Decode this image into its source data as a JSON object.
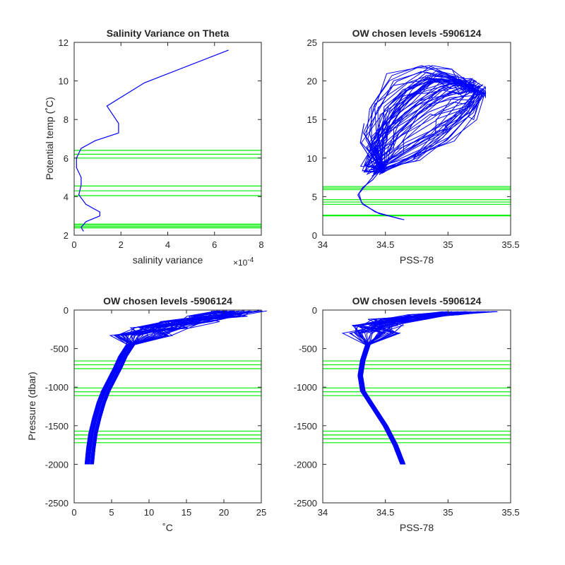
{
  "figure": {
    "colors": {
      "profile": "#0000ff",
      "level": "#00ee00",
      "axis": "#262626"
    }
  },
  "chart_data": [
    {
      "id": "p1",
      "type": "line",
      "title": "Salinity Variance on Theta",
      "xlabel": "salinity variance",
      "ylabel": "Potential temp (˚C)",
      "x_exponent": "×10",
      "x_exponent_power": "-4",
      "xlim": [
        0,
        8
      ],
      "ylim": [
        2,
        12
      ],
      "xticks": [
        "0",
        "2",
        "4",
        "6",
        "8"
      ],
      "yticks": [
        "2",
        "4",
        "6",
        "8",
        "10",
        "12"
      ],
      "series": [
        {
          "kind": "profile",
          "points": [
            [
              0.4,
              2.2
            ],
            [
              0.3,
              2.4
            ],
            [
              0.5,
              2.7
            ],
            [
              1.1,
              3.0
            ],
            [
              1.1,
              3.2
            ],
            [
              0.5,
              3.6
            ],
            [
              0.2,
              4.1
            ],
            [
              0.3,
              4.6
            ],
            [
              0.3,
              5.0
            ],
            [
              0.1,
              5.5
            ],
            [
              0.1,
              6.0
            ],
            [
              0.3,
              6.5
            ],
            [
              0.9,
              6.9
            ],
            [
              1.9,
              7.3
            ],
            [
              1.9,
              7.8
            ],
            [
              1.4,
              8.7
            ],
            [
              3.0,
              9.9
            ],
            [
              6.6,
              11.6
            ]
          ]
        }
      ],
      "levels": [
        2.38,
        2.45,
        2.52,
        2.58,
        4.05,
        4.3,
        4.55,
        6.0,
        6.2,
        6.4
      ]
    },
    {
      "id": "p2",
      "type": "line",
      "title": "OW chosen levels -5906124",
      "xlabel": "PSS-78",
      "ylabel": "",
      "xlim": [
        34,
        35.5
      ],
      "ylim": [
        0,
        25
      ],
      "xticks": [
        "34",
        "34.5",
        "35",
        "35.5"
      ],
      "yticks": [
        "0",
        "5",
        "10",
        "15",
        "20",
        "25"
      ],
      "series": [
        {
          "kind": "profile",
          "points": [
            [
              34.65,
              2.0
            ],
            [
              34.45,
              2.8
            ],
            [
              34.32,
              4.0
            ],
            [
              34.28,
              5.2
            ],
            [
              34.32,
              6.2
            ],
            [
              34.4,
              7.2
            ],
            [
              34.45,
              8.2
            ],
            [
              34.5,
              9.5
            ]
          ]
        },
        {
          "kind": "profile",
          "points": [
            [
              34.62,
              2.1
            ],
            [
              34.42,
              3.0
            ],
            [
              34.31,
              4.2
            ],
            [
              34.29,
              5.4
            ],
            [
              34.35,
              6.6
            ],
            [
              34.42,
              8.0
            ],
            [
              34.38,
              10.0
            ],
            [
              34.3,
              12.0
            ],
            [
              34.33,
              14.5
            ]
          ]
        }
      ],
      "envelope": {
        "lower": [
          [
            34.45,
            8.0
          ],
          [
            34.75,
            10.0
          ],
          [
            35.0,
            12.5
          ],
          [
            35.2,
            15.5
          ],
          [
            35.28,
            18.5
          ]
        ],
        "upper": [
          [
            34.3,
            9.0
          ],
          [
            34.35,
            13.0
          ],
          [
            34.42,
            17.0
          ],
          [
            34.55,
            20.5
          ],
          [
            34.8,
            22.0
          ],
          [
            35.05,
            21.0
          ],
          [
            35.15,
            19.5
          ]
        ]
      },
      "levels": [
        2.5,
        2.6,
        4.0,
        4.3,
        4.6,
        5.9,
        6.1,
        6.3
      ]
    },
    {
      "id": "p3",
      "type": "line",
      "title": "OW chosen levels -5906124",
      "xlabel": "˚C",
      "ylabel": "Pressure (dbar)",
      "xlim": [
        0,
        25
      ],
      "ylim": [
        -2500,
        0
      ],
      "xticks": [
        "0",
        "5",
        "10",
        "15",
        "20",
        "25"
      ],
      "yticks": [
        "-2500",
        "-2000",
        "-1500",
        "-1000",
        "-500",
        "0"
      ],
      "series": [
        {
          "kind": "profile",
          "points": [
            [
              2.0,
              -2000
            ],
            [
              2.2,
              -1800
            ],
            [
              2.5,
              -1600
            ],
            [
              3.0,
              -1400
            ],
            [
              3.6,
              -1200
            ],
            [
              4.2,
              -1050
            ],
            [
              5.0,
              -900
            ],
            [
              5.8,
              -750
            ],
            [
              6.5,
              -600
            ],
            [
              7.5,
              -450
            ],
            [
              9.0,
              -330
            ],
            [
              11.5,
              -230
            ],
            [
              15.0,
              -150
            ],
            [
              19.0,
              -80
            ],
            [
              22.0,
              -10
            ]
          ]
        }
      ],
      "band_halfwidth": 0.6,
      "levels": [
        -660,
        -710,
        -760,
        -1010,
        -1060,
        -1110,
        -1570,
        -1620,
        -1670,
        -1720
      ]
    },
    {
      "id": "p4",
      "type": "line",
      "title": "OW chosen levels -5906124",
      "xlabel": "PSS-78",
      "ylabel": "",
      "xlim": [
        34,
        35.5
      ],
      "ylim": [
        -2500,
        0
      ],
      "xticks": [
        "34",
        "34.5",
        "35",
        "35.5"
      ],
      "yticks": [
        "-2500",
        "-2000",
        "-1500",
        "-1000",
        "-500",
        "0"
      ],
      "series": [
        {
          "kind": "profile",
          "points": [
            [
              34.64,
              -2000
            ],
            [
              34.58,
              -1750
            ],
            [
              34.5,
              -1500
            ],
            [
              34.4,
              -1250
            ],
            [
              34.32,
              -1050
            ],
            [
              34.3,
              -850
            ],
            [
              34.32,
              -650
            ],
            [
              34.36,
              -450
            ],
            [
              34.4,
              -300
            ],
            [
              34.45,
              -200
            ],
            [
              34.6,
              -120
            ],
            [
              34.9,
              -60
            ],
            [
              35.2,
              -20
            ]
          ]
        }
      ],
      "band_halfwidth": 0.02,
      "levels": [
        -660,
        -710,
        -760,
        -1010,
        -1060,
        -1110,
        -1570,
        -1620,
        -1670,
        -1720
      ]
    }
  ]
}
